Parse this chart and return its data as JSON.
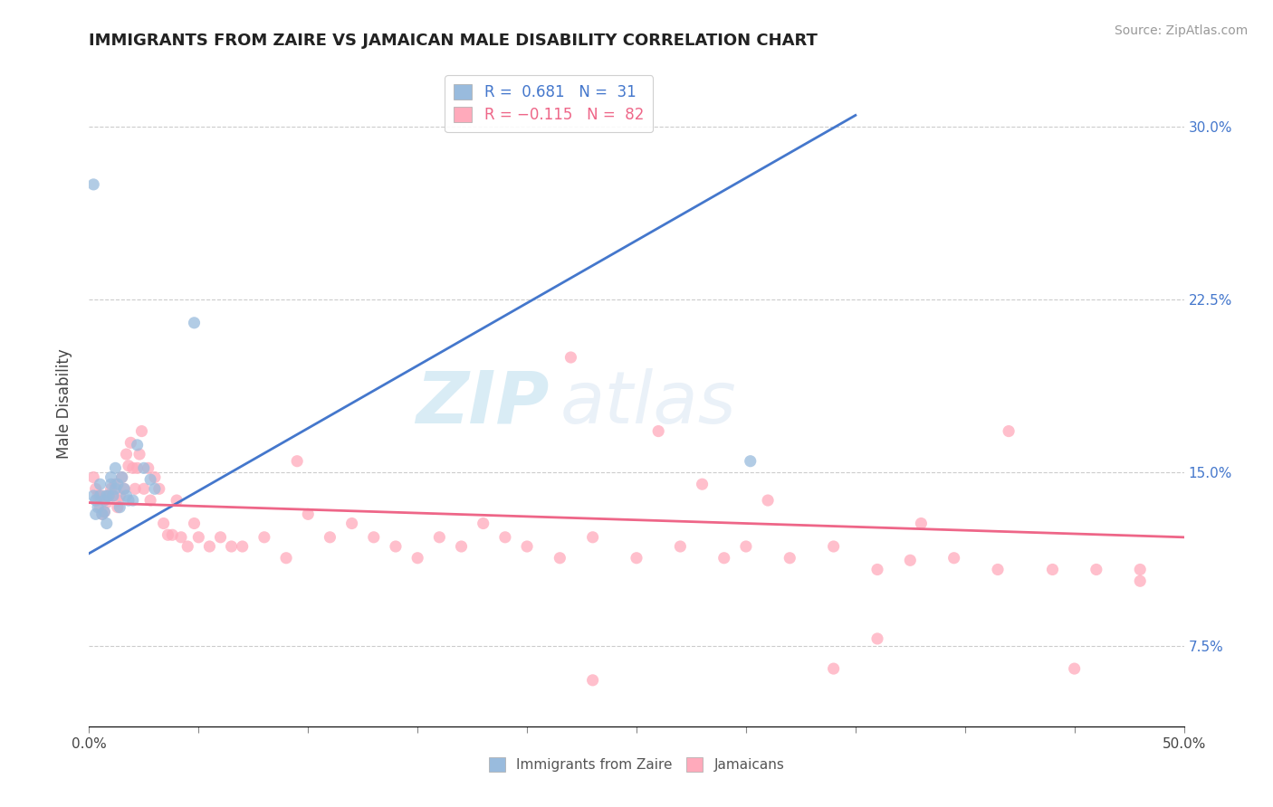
{
  "title": "IMMIGRANTS FROM ZAIRE VS JAMAICAN MALE DISABILITY CORRELATION CHART",
  "source": "Source: ZipAtlas.com",
  "ylabel": "Male Disability",
  "xlim": [
    0.0,
    0.5
  ],
  "ylim": [
    0.04,
    0.32
  ],
  "right_yticks": [
    0.075,
    0.15,
    0.225,
    0.3
  ],
  "right_yticklabels": [
    "7.5%",
    "15.0%",
    "22.5%",
    "30.0%"
  ],
  "xticks": [
    0.0,
    0.05,
    0.1,
    0.15,
    0.2,
    0.25,
    0.3,
    0.35,
    0.4,
    0.45,
    0.5
  ],
  "xtick_labels_show": [
    "0.0%",
    "",
    "",
    "",
    "",
    "",
    "",
    "",
    "",
    "",
    "50.0%"
  ],
  "legend_labels": [
    "Immigrants from Zaire",
    "Jamaicans"
  ],
  "legend_r_vals": [
    "0.681",
    "-0.115"
  ],
  "legend_n_vals": [
    "31",
    "82"
  ],
  "blue_color": "#99BBDD",
  "pink_color": "#FFAABB",
  "blue_line_color": "#4477CC",
  "pink_line_color": "#EE6688",
  "accent_color": "#4477CC",
  "watermark_color": "#BBDDEE",
  "blue_scatter_x": [
    0.002,
    0.003,
    0.003,
    0.004,
    0.005,
    0.005,
    0.006,
    0.007,
    0.007,
    0.008,
    0.008,
    0.009,
    0.01,
    0.01,
    0.011,
    0.012,
    0.012,
    0.013,
    0.014,
    0.015,
    0.016,
    0.017,
    0.018,
    0.02,
    0.022,
    0.025,
    0.028,
    0.03,
    0.002,
    0.302,
    0.048
  ],
  "blue_scatter_y": [
    0.14,
    0.138,
    0.132,
    0.135,
    0.14,
    0.145,
    0.132,
    0.138,
    0.133,
    0.14,
    0.128,
    0.14,
    0.145,
    0.148,
    0.14,
    0.152,
    0.143,
    0.145,
    0.135,
    0.148,
    0.143,
    0.14,
    0.138,
    0.138,
    0.162,
    0.152,
    0.147,
    0.143,
    0.275,
    0.155,
    0.215
  ],
  "pink_scatter_x": [
    0.002,
    0.003,
    0.004,
    0.005,
    0.006,
    0.006,
    0.007,
    0.008,
    0.009,
    0.01,
    0.011,
    0.012,
    0.013,
    0.013,
    0.014,
    0.015,
    0.016,
    0.017,
    0.018,
    0.019,
    0.02,
    0.021,
    0.022,
    0.023,
    0.024,
    0.025,
    0.027,
    0.028,
    0.03,
    0.032,
    0.034,
    0.036,
    0.038,
    0.04,
    0.042,
    0.045,
    0.048,
    0.05,
    0.055,
    0.06,
    0.065,
    0.07,
    0.08,
    0.09,
    0.095,
    0.1,
    0.11,
    0.12,
    0.13,
    0.14,
    0.15,
    0.16,
    0.17,
    0.18,
    0.19,
    0.2,
    0.215,
    0.23,
    0.25,
    0.27,
    0.29,
    0.3,
    0.32,
    0.34,
    0.36,
    0.375,
    0.395,
    0.415,
    0.42,
    0.44,
    0.46,
    0.48,
    0.22,
    0.26,
    0.34,
    0.36,
    0.28,
    0.31,
    0.38,
    0.45,
    0.23,
    0.48
  ],
  "pink_scatter_y": [
    0.148,
    0.143,
    0.14,
    0.135,
    0.14,
    0.132,
    0.133,
    0.137,
    0.14,
    0.143,
    0.14,
    0.145,
    0.135,
    0.138,
    0.14,
    0.148,
    0.143,
    0.158,
    0.153,
    0.163,
    0.152,
    0.143,
    0.152,
    0.158,
    0.168,
    0.143,
    0.152,
    0.138,
    0.148,
    0.143,
    0.128,
    0.123,
    0.123,
    0.138,
    0.122,
    0.118,
    0.128,
    0.122,
    0.118,
    0.122,
    0.118,
    0.118,
    0.122,
    0.113,
    0.155,
    0.132,
    0.122,
    0.128,
    0.122,
    0.118,
    0.113,
    0.122,
    0.118,
    0.128,
    0.122,
    0.118,
    0.113,
    0.122,
    0.113,
    0.118,
    0.113,
    0.118,
    0.113,
    0.118,
    0.108,
    0.112,
    0.113,
    0.108,
    0.168,
    0.108,
    0.108,
    0.103,
    0.2,
    0.168,
    0.065,
    0.078,
    0.145,
    0.138,
    0.128,
    0.065,
    0.06,
    0.108
  ],
  "blue_line_x0": 0.0,
  "blue_line_x1": 0.35,
  "blue_line_y0": 0.115,
  "blue_line_y1": 0.305,
  "pink_line_x0": 0.0,
  "pink_line_x1": 0.5,
  "pink_line_y0": 0.137,
  "pink_line_y1": 0.122
}
